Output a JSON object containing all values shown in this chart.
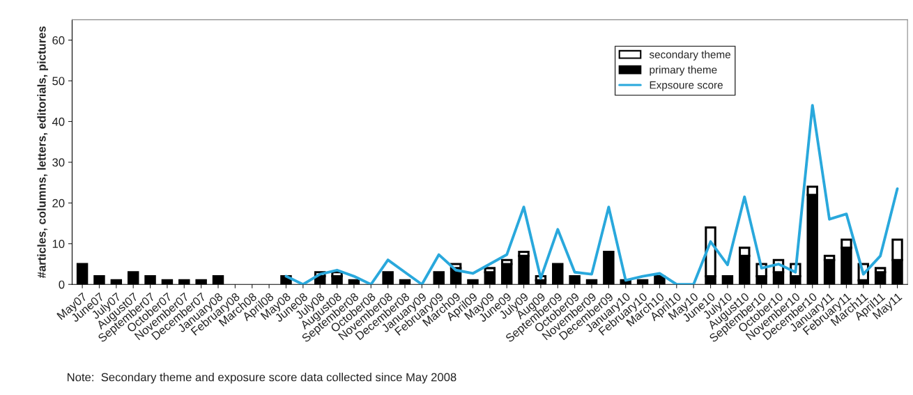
{
  "chart_data": {
    "type": "bar",
    "stacked": true,
    "ylabel": "#articles, columns, letters, editorials, pictures",
    "categories": [
      "May07",
      "June07",
      "July07",
      "August07",
      "September07",
      "October07",
      "November07",
      "December07",
      "January08",
      "February08",
      "March08",
      "April08",
      "May08",
      "June08",
      "July08",
      "August08",
      "September08",
      "October08",
      "November08",
      "December08",
      "January09",
      "February09",
      "March09",
      "April09",
      "May09",
      "June09",
      "July09",
      "Aug09",
      "September09",
      "October09",
      "November09",
      "December09",
      "January10",
      "February10",
      "March10",
      "April10",
      "May10",
      "June10",
      "July10",
      "August10",
      "September10",
      "October10",
      "November10",
      "December10",
      "January11",
      "February11",
      "March11",
      "April11",
      "May11"
    ],
    "series": [
      {
        "name": "primary theme",
        "color": "#000000",
        "values": [
          5,
          2,
          1,
          3,
          2,
          1,
          1,
          1,
          2,
          0,
          0,
          0,
          2,
          0,
          2,
          2,
          1,
          0,
          3,
          1,
          0,
          3,
          4,
          1,
          3,
          5,
          7,
          1,
          5,
          2,
          1,
          8,
          1,
          1,
          2,
          0,
          0,
          2,
          2,
          7,
          2,
          3,
          2,
          22,
          6,
          9,
          1,
          3,
          6
        ]
      },
      {
        "name": "secondary theme",
        "color": "#ffffff",
        "values": [
          0,
          0,
          0,
          0,
          0,
          0,
          0,
          0,
          0,
          0,
          0,
          0,
          0,
          0,
          1,
          1,
          0,
          0,
          0,
          0,
          0,
          0,
          1,
          0,
          1,
          1,
          1,
          1,
          0,
          0,
          0,
          0,
          0,
          0,
          0,
          0,
          0,
          12,
          0,
          2,
          3,
          3,
          3,
          2,
          1,
          2,
          4,
          1,
          5
        ]
      },
      {
        "name": "Expsoure score",
        "type": "line",
        "color": "#29a8dc",
        "values": [
          null,
          null,
          null,
          null,
          null,
          null,
          null,
          null,
          null,
          null,
          null,
          null,
          2,
          0,
          2.5,
          3.5,
          2,
          0,
          6,
          3,
          0,
          7.3,
          3.5,
          2.7,
          5,
          7.3,
          19,
          1.5,
          13.5,
          3,
          2.5,
          19,
          1,
          2,
          2.7,
          0,
          0,
          10.5,
          4.8,
          21.5,
          4,
          5,
          3,
          44,
          16,
          17.3,
          2.5,
          7,
          23.5
        ]
      }
    ],
    "ylim": [
      0,
      65
    ],
    "yticks": [
      0,
      10,
      20,
      30,
      40,
      50,
      60
    ],
    "legend": "top right",
    "annotations": [
      "Note:  Secondary theme and exposure score data collected since May 2008"
    ]
  }
}
